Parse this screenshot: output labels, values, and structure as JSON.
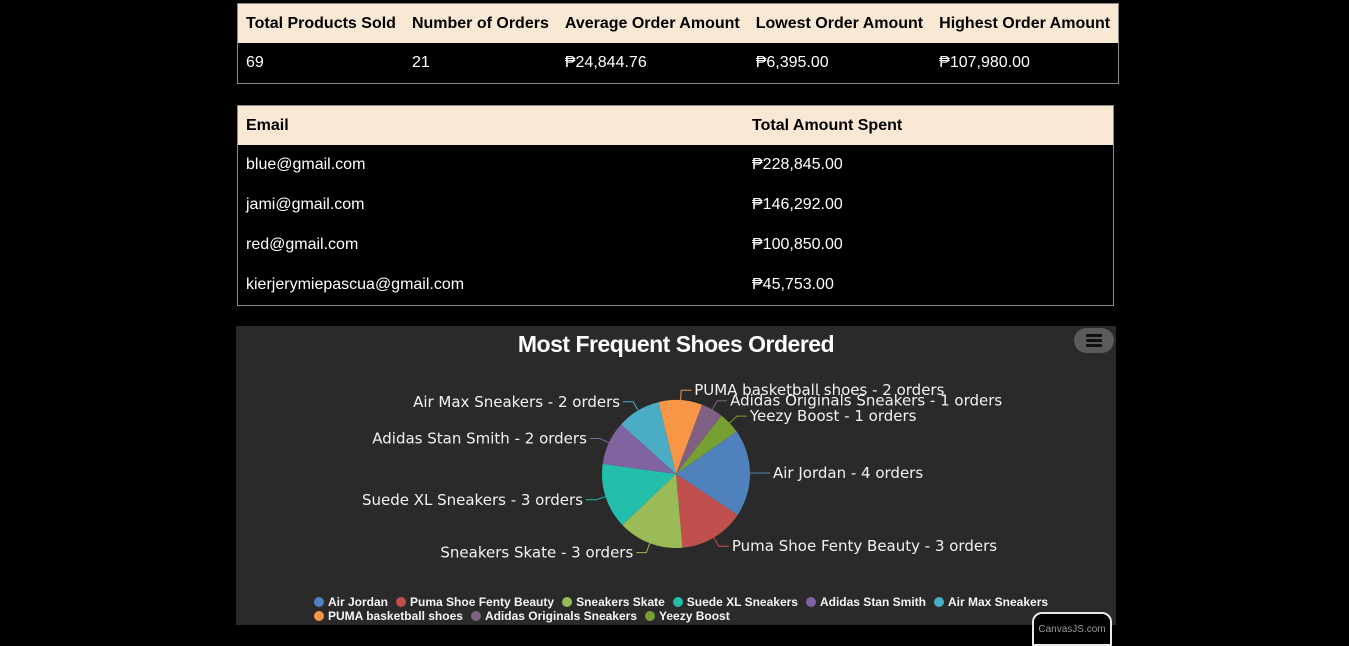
{
  "stats_table": {
    "headers": [
      "Total Products Sold",
      "Number of Orders",
      "Average Order Amount",
      "Lowest Order Amount",
      "Highest Order Amount"
    ],
    "row": [
      "69",
      "21",
      "₱24,844.76",
      "₱6,395.00",
      "₱107,980.00"
    ]
  },
  "spenders_table": {
    "headers": [
      "Email",
      "Total Amount Spent"
    ],
    "rows": [
      [
        "blue@gmail.com",
        "₱228,845.00"
      ],
      [
        "jami@gmail.com",
        "₱146,292.00"
      ],
      [
        "red@gmail.com",
        "₱100,850.00"
      ],
      [
        "kierjerymiepascua@gmail.com",
        "₱45,753.00"
      ]
    ]
  },
  "chart_data": {
    "type": "pie",
    "title": "Most Frequent Shoes Ordered",
    "unit_suffix": "orders",
    "legend_position": "bottom",
    "slices": [
      {
        "label": "Air Jordan",
        "value": 4,
        "color": "#4f81bc"
      },
      {
        "label": "Puma Shoe Fenty Beauty",
        "value": 3,
        "color": "#c0504e"
      },
      {
        "label": "Sneakers Skate",
        "value": 3,
        "color": "#9bbb58"
      },
      {
        "label": "Suede XL Sneakers",
        "value": 3,
        "color": "#23bfaa"
      },
      {
        "label": "Adidas Stan Smith",
        "value": 2,
        "color": "#8064a1"
      },
      {
        "label": "Air Max Sneakers",
        "value": 2,
        "color": "#4aacc5"
      },
      {
        "label": "PUMA basketball shoes",
        "value": 2,
        "color": "#f79647"
      },
      {
        "label": "Adidas Originals Sneakers",
        "value": 1,
        "color": "#7f6084"
      },
      {
        "label": "Yeezy Boost",
        "value": 1,
        "color": "#77a033"
      }
    ]
  },
  "credit": "CanvasJS.com"
}
